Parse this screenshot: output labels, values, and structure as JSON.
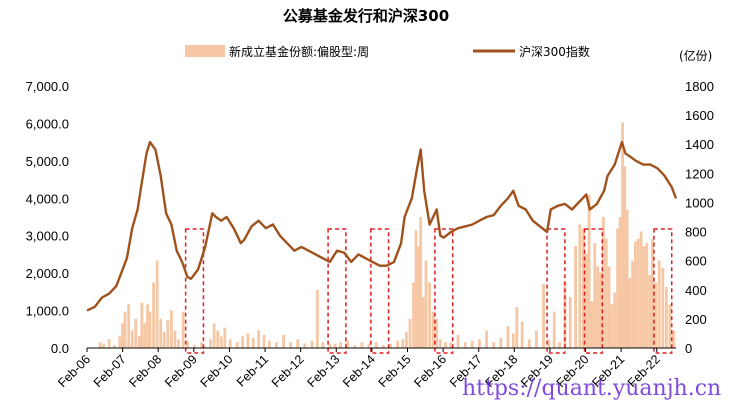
{
  "chart_data": {
    "type": "bar+line",
    "title": "公募基金发行和沪深300",
    "legend": [
      {
        "name": "新成立基金份额:偏股型:周",
        "color": "#f6c7a4",
        "kind": "bar"
      },
      {
        "name": "沪深300指数",
        "color": "#a0521d",
        "kind": "line"
      }
    ],
    "right_axis_unit": "(亿份)",
    "left_axis": {
      "ylim": [
        0,
        7000
      ],
      "ticks": [
        "0.0",
        "1,000.0",
        "2,000.0",
        "3,000.0",
        "4,000.0",
        "5,000.0",
        "6,000.0",
        "7,000.0"
      ]
    },
    "right_axis": {
      "ylim": [
        0,
        1800
      ],
      "ticks": [
        "0",
        "200",
        "400",
        "600",
        "800",
        "1000",
        "1200",
        "1400",
        "1600",
        "1800"
      ]
    },
    "x_range": [
      2006.08,
      2022.62
    ],
    "x_ticks": [
      "Feb-06",
      "Feb-07",
      "Feb-08",
      "Feb-09",
      "Feb-10",
      "Feb-11",
      "Feb-12",
      "Feb-13",
      "Feb-14",
      "Feb-15",
      "Feb-16",
      "Feb-17",
      "Feb-18",
      "Feb-19",
      "Feb-20",
      "Feb-21",
      "Feb-22"
    ],
    "line_series": {
      "name": "沪深300指数",
      "x": [
        2006.08,
        2006.3,
        2006.5,
        2006.7,
        2006.9,
        2007.0,
        2007.2,
        2007.35,
        2007.5,
        2007.6,
        2007.75,
        2007.85,
        2008.0,
        2008.15,
        2008.3,
        2008.45,
        2008.6,
        2008.75,
        2008.9,
        2009.0,
        2009.2,
        2009.4,
        2009.6,
        2009.7,
        2009.85,
        2010.0,
        2010.2,
        2010.4,
        2010.5,
        2010.7,
        2010.9,
        2011.1,
        2011.3,
        2011.5,
        2011.7,
        2011.9,
        2012.1,
        2012.3,
        2012.5,
        2012.7,
        2012.9,
        2013.1,
        2013.3,
        2013.5,
        2013.7,
        2013.9,
        2014.1,
        2014.3,
        2014.5,
        2014.7,
        2014.9,
        2015.0,
        2015.2,
        2015.35,
        2015.45,
        2015.55,
        2015.7,
        2015.9,
        2016.0,
        2016.1,
        2016.3,
        2016.5,
        2016.7,
        2016.9,
        2017.1,
        2017.3,
        2017.5,
        2017.7,
        2017.9,
        2018.05,
        2018.2,
        2018.4,
        2018.6,
        2018.8,
        2019.0,
        2019.1,
        2019.3,
        2019.5,
        2019.7,
        2019.9,
        2020.1,
        2020.2,
        2020.4,
        2020.6,
        2020.7,
        2020.9,
        2021.1,
        2021.2,
        2021.35,
        2021.5,
        2021.7,
        2021.9,
        2022.1,
        2022.3,
        2022.5,
        2022.62
      ],
      "values": [
        1000,
        1100,
        1350,
        1450,
        1650,
        1900,
        2400,
        3200,
        3700,
        4300,
        5200,
        5500,
        5300,
        4600,
        3600,
        3300,
        2600,
        2300,
        1900,
        1850,
        2100,
        2700,
        3600,
        3500,
        3400,
        3500,
        3200,
        2800,
        2900,
        3250,
        3400,
        3200,
        3300,
        3000,
        2800,
        2600,
        2700,
        2600,
        2500,
        2400,
        2300,
        2600,
        2550,
        2300,
        2500,
        2400,
        2300,
        2200,
        2200,
        2300,
        2800,
        3500,
        4000,
        4800,
        5300,
        4200,
        3300,
        3700,
        3000,
        2950,
        3100,
        3200,
        3250,
        3300,
        3400,
        3500,
        3550,
        3800,
        4000,
        4200,
        3800,
        3700,
        3400,
        3250,
        3100,
        3700,
        3800,
        3850,
        3700,
        3900,
        4100,
        3700,
        3850,
        4200,
        4600,
        4900,
        5500,
        5200,
        5100,
        5000,
        4900,
        4900,
        4800,
        4600,
        4300,
        4000
      ]
    },
    "bar_series": {
      "name": "新成立基金份额:偏股型:周",
      "x": [
        2006.3,
        2006.45,
        2006.55,
        2006.7,
        2006.85,
        2007.0,
        2007.08,
        2007.15,
        2007.25,
        2007.35,
        2007.45,
        2007.55,
        2007.62,
        2007.7,
        2007.78,
        2007.85,
        2007.95,
        2008.05,
        2008.15,
        2008.25,
        2008.35,
        2008.45,
        2008.55,
        2008.65,
        2008.78,
        2008.9,
        2009.1,
        2009.3,
        2009.4,
        2009.55,
        2009.65,
        2009.75,
        2009.85,
        2009.95,
        2010.1,
        2010.3,
        2010.45,
        2010.6,
        2010.75,
        2010.9,
        2011.05,
        2011.2,
        2011.4,
        2011.6,
        2011.8,
        2012.0,
        2012.2,
        2012.4,
        2012.55,
        2012.7,
        2012.9,
        2013.05,
        2013.2,
        2013.4,
        2013.6,
        2013.8,
        2014.0,
        2014.2,
        2014.4,
        2014.6,
        2014.8,
        2014.95,
        2015.05,
        2015.15,
        2015.25,
        2015.32,
        2015.38,
        2015.45,
        2015.52,
        2015.6,
        2015.7,
        2015.8,
        2015.9,
        2016.0,
        2016.15,
        2016.3,
        2016.5,
        2016.7,
        2016.9,
        2017.1,
        2017.3,
        2017.5,
        2017.7,
        2017.9,
        2018.05,
        2018.15,
        2018.3,
        2018.5,
        2018.7,
        2018.9,
        2019.05,
        2019.2,
        2019.35,
        2019.5,
        2019.65,
        2019.8,
        2019.92,
        2020.02,
        2020.1,
        2020.18,
        2020.26,
        2020.34,
        2020.42,
        2020.5,
        2020.58,
        2020.66,
        2020.74,
        2020.82,
        2020.9,
        2020.98,
        2021.05,
        2021.12,
        2021.18,
        2021.25,
        2021.32,
        2021.4,
        2021.48,
        2021.56,
        2021.64,
        2021.72,
        2021.8,
        2021.88,
        2021.96,
        2022.05,
        2022.15,
        2022.25,
        2022.35,
        2022.45,
        2022.55
      ],
      "values": [
        2,
        40,
        30,
        60,
        20,
        80,
        170,
        250,
        300,
        120,
        200,
        80,
        310,
        170,
        300,
        250,
        450,
        600,
        200,
        110,
        190,
        260,
        120,
        60,
        250,
        50,
        20,
        40,
        10,
        60,
        170,
        120,
        80,
        140,
        60,
        40,
        80,
        100,
        70,
        120,
        90,
        50,
        40,
        90,
        40,
        60,
        30,
        50,
        400,
        40,
        30,
        30,
        40,
        50,
        20,
        40,
        30,
        40,
        20,
        30,
        50,
        60,
        110,
        200,
        450,
        810,
        700,
        900,
        350,
        600,
        450,
        250,
        200,
        60,
        40,
        40,
        90,
        40,
        50,
        60,
        120,
        40,
        70,
        150,
        100,
        280,
        180,
        60,
        120,
        440,
        60,
        250,
        40,
        450,
        350,
        700,
        850,
        820,
        650,
        1050,
        320,
        720,
        560,
        520,
        900,
        750,
        560,
        300,
        380,
        820,
        900,
        1550,
        1250,
        950,
        480,
        600,
        730,
        750,
        800,
        700,
        720,
        500,
        750,
        450,
        600,
        550,
        420,
        300,
        120
      ]
    },
    "highlight_boxes": [
      {
        "from": 2008.85,
        "to": 2009.35
      },
      {
        "from": 2012.85,
        "to": 2013.35
      },
      {
        "from": 2014.05,
        "to": 2014.55
      },
      {
        "from": 2015.85,
        "to": 2016.35
      },
      {
        "from": 2019.0,
        "to": 2019.5
      },
      {
        "from": 2020.05,
        "to": 2020.55
      },
      {
        "from": 2022.0,
        "to": 2022.5
      }
    ],
    "grid": false
  },
  "watermark": "https://quant.yuanjh.cn"
}
